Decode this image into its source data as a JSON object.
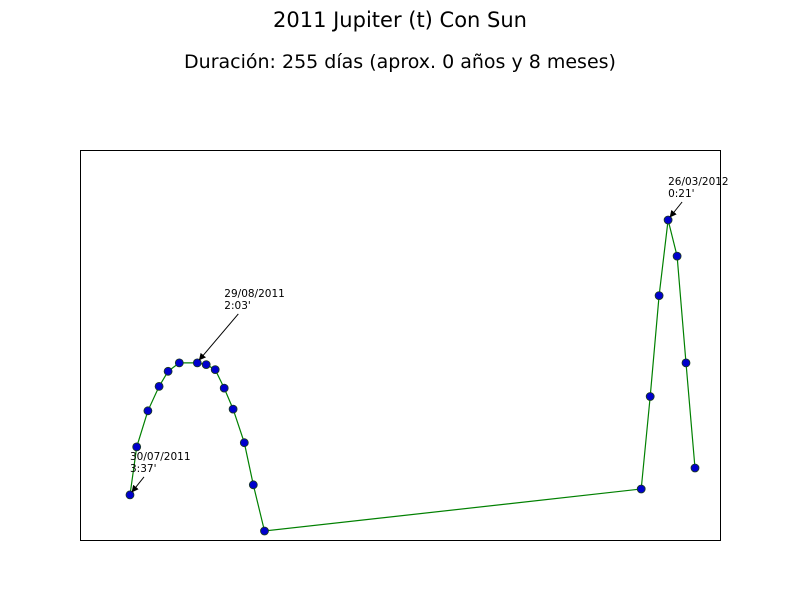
{
  "chart_data": {
    "type": "line",
    "title": "2011 Jupiter (t) Con Sun",
    "subtitle": "Duración: 255 días (aprox. 0 años y 8 meses)",
    "xlabel": "",
    "ylabel": "",
    "x_axis": "date",
    "ticks_shown": false,
    "grid": false,
    "series": [
      {
        "points": [
          {
            "x": "2011-07-30",
            "y": 3.62
          },
          {
            "x": "2011-08-02",
            "y": 3.05
          },
          {
            "x": "2011-08-07",
            "y": 2.62
          },
          {
            "x": "2011-08-12",
            "y": 2.33
          },
          {
            "x": "2011-08-16",
            "y": 2.15
          },
          {
            "x": "2011-08-21",
            "y": 2.05
          },
          {
            "x": "2011-08-29",
            "y": 2.05
          },
          {
            "x": "2011-09-02",
            "y": 2.07
          },
          {
            "x": "2011-09-06",
            "y": 2.13
          },
          {
            "x": "2011-09-10",
            "y": 2.35
          },
          {
            "x": "2011-09-14",
            "y": 2.6
          },
          {
            "x": "2011-09-19",
            "y": 3.0
          },
          {
            "x": "2011-09-23",
            "y": 3.5
          },
          {
            "x": "2011-09-28",
            "y": 4.05
          },
          {
            "x": "2012-03-14",
            "y": 3.55
          },
          {
            "x": "2012-03-18",
            "y": 2.45
          },
          {
            "x": "2012-03-22",
            "y": 1.25
          },
          {
            "x": "2012-03-26",
            "y": 0.35
          },
          {
            "x": "2012-03-30",
            "y": 0.78
          },
          {
            "x": "2012-04-03",
            "y": 2.05
          },
          {
            "x": "2012-04-07",
            "y": 3.3
          }
        ],
        "line_color": "#008000",
        "marker_color": "#0000cc",
        "marker_edge": "#1a3a1a"
      }
    ],
    "annotations": [
      {
        "point_index": 0,
        "date": "30/07/2011",
        "value": "3:37'"
      },
      {
        "point_index": 6,
        "date": "29/08/2011",
        "value": "2:03'"
      },
      {
        "point_index": 17,
        "date": "26/03/2012",
        "value": "0:21'"
      }
    ]
  }
}
